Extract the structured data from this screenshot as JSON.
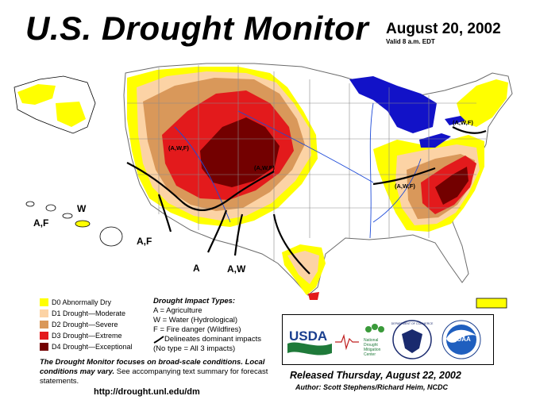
{
  "header": {
    "title": "U.S. Drought Monitor",
    "date": "August 20, 2002",
    "valid": "Valid 8 a.m. EDT"
  },
  "legend": {
    "items": [
      {
        "label": "D0 Abnormally Dry",
        "color": "#ffff00"
      },
      {
        "label": "D1 Drought—Moderate",
        "color": "#fcd3a5"
      },
      {
        "label": "D2 Drought—Severe",
        "color": "#d9985a"
      },
      {
        "label": "D3 Drought—Extreme",
        "color": "#e31a1c"
      },
      {
        "label": "D4 Drought—Exceptional",
        "color": "#730000"
      }
    ]
  },
  "impacts": {
    "title": "Drought  Impact  Types:",
    "lines": [
      "A = Agriculture",
      "W = Water (Hydrological)",
      "F = Fire danger (Wildfires)"
    ],
    "stroke_label": "Delineates dominant impacts",
    "none_note": "(No type = All 3 impacts)"
  },
  "note": {
    "bold": "The Drought Monitor focuses on broad-scale conditions. Local conditions may vary.",
    "rest": " See accompanying text summary for forecast statements."
  },
  "url": "http://drought.unl.edu/dm",
  "logos": {
    "usda": "USDA",
    "ndmc": [
      "National",
      "Drought",
      "Mitigation",
      "Center"
    ],
    "commerce": "DEPARTMENT OF COMMERCE",
    "noaa": "NOAA"
  },
  "released": "Released Thursday, August 22, 2002",
  "author": "Author:  Scott Stephens/Richard Heim, NCDC",
  "map_labels": {
    "west_awf": "(A,W,F)",
    "central_awf": "(A,W,F)",
    "east_awf": "(A,W,F)",
    "ne_awf": "(A,W,F)",
    "hawaii_w": "W",
    "hawaii_af": "A,F",
    "sw_af": "A,F",
    "sw_a": "A",
    "sw_aw": "A,W"
  }
}
